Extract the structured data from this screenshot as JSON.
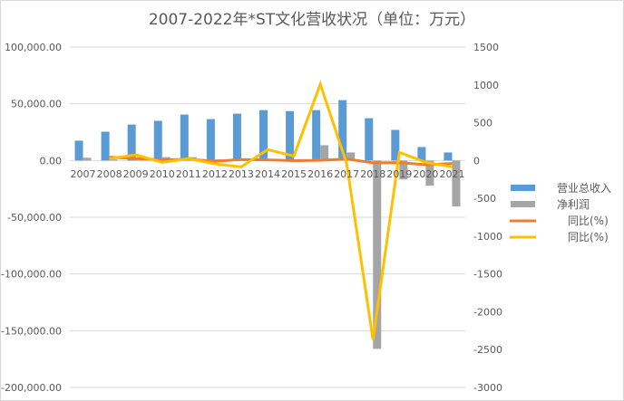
{
  "chart_data": {
    "type": "bar+line",
    "title": "2007-2022年*ST文化营收状况（单位：万元）",
    "categories": [
      "2007",
      "2008",
      "2009",
      "2010",
      "2011",
      "2012",
      "2013",
      "2014",
      "2015",
      "2016",
      "2017",
      "2018",
      "2019",
      "2020",
      "2021"
    ],
    "y_left": {
      "min": -200000,
      "max": 100000,
      "step": 50000,
      "tick_labels": [
        "100,000.00",
        "50,000.00",
        "0.00",
        "-50,000.00",
        "-100,000.00",
        "-150,000.00",
        "-200,000.00"
      ]
    },
    "y_right": {
      "min": -3000,
      "max": 1500,
      "step": 500,
      "tick_labels": [
        "1500",
        "1000",
        "500",
        "0",
        "-500",
        "-1000",
        "-1500",
        "-2000",
        "-2500",
        "-3000"
      ]
    },
    "grid": true,
    "legend_position": "right",
    "series": [
      {
        "name": "营业总收入",
        "type": "bar",
        "axis": "left",
        "color": "#5B9BD5",
        "values": [
          17500,
          25400,
          31700,
          35000,
          40500,
          36500,
          41300,
          44400,
          43600,
          44400,
          53200,
          37300,
          27000,
          11900,
          7100
        ]
      },
      {
        "name": "净利润",
        "type": "bar",
        "axis": "left",
        "color": "#A5A5A5",
        "values": [
          2400,
          1000,
          1500,
          3000,
          3000,
          1000,
          500,
          500,
          300,
          13500,
          7100,
          -166000,
          -16700,
          -22200,
          -40500
        ]
      },
      {
        "name": "同比(%)",
        "type": "line",
        "axis": "right",
        "color": "#ED7D31",
        "values": [
          null,
          45,
          25,
          10,
          16,
          -10,
          13,
          8,
          -2,
          2,
          20,
          -30,
          -28,
          -56,
          -40
        ]
      },
      {
        "name": "同比(%)",
        "type": "line",
        "axis": "right",
        "color": "#FFC000",
        "values": [
          null,
          24,
          75,
          -24,
          24,
          -44,
          -84,
          144,
          60,
          1010,
          -40,
          -2370,
          108,
          -24,
          -84
        ]
      }
    ]
  }
}
